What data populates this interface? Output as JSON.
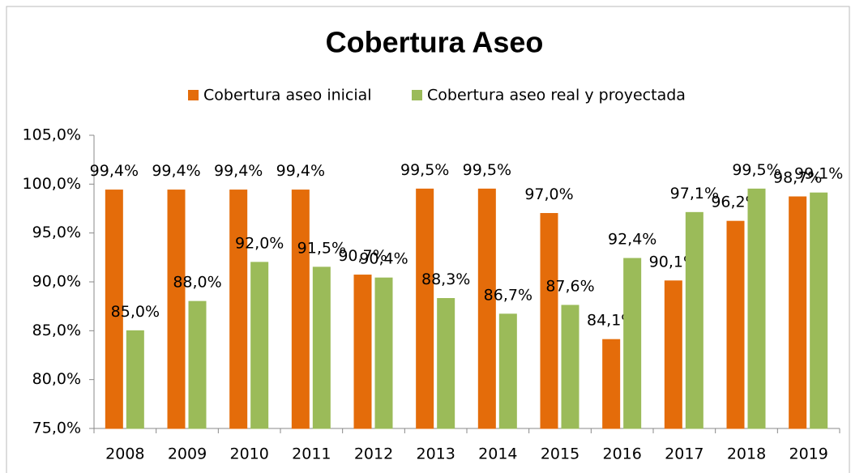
{
  "chart_data": {
    "type": "bar",
    "title": "Cobertura Aseo",
    "categories": [
      "2008",
      "2009",
      "2010",
      "2011",
      "2012",
      "2013",
      "2014",
      "2015",
      "2016",
      "2017",
      "2018",
      "2019"
    ],
    "series": [
      {
        "name": "Cobertura aseo inicial",
        "color": "#e46c0a",
        "values": [
          99.4,
          99.4,
          99.4,
          99.4,
          90.7,
          99.5,
          99.5,
          97.0,
          84.1,
          90.1,
          96.2,
          98.7
        ],
        "value_labels": [
          "99,4%",
          "99,4%",
          "99,4%",
          "99,4%",
          "90,7%",
          "99,5%",
          "99,5%",
          "97,0%",
          "84,1%",
          "90,1%",
          "96,2%",
          "98,7%"
        ]
      },
      {
        "name": "Cobertura aseo real y proyectada",
        "color": "#9bbb59",
        "values": [
          85.0,
          88.0,
          92.0,
          91.5,
          90.4,
          88.3,
          86.7,
          87.6,
          92.4,
          97.1,
          99.5,
          99.1
        ],
        "value_labels": [
          "85,0%",
          "88,0%",
          "92,0%",
          "91,5%",
          "90,4%",
          "88,3%",
          "86,7%",
          "87,6%",
          "92,4%",
          "97,1%",
          "99,5%",
          "99,1%"
        ]
      }
    ],
    "ylim": [
      75,
      105
    ],
    "yticks": [
      {
        "value": 75,
        "label": "75,0%"
      },
      {
        "value": 80,
        "label": "80,0%"
      },
      {
        "value": 85,
        "label": "85,0%"
      },
      {
        "value": 90,
        "label": "90,0%"
      },
      {
        "value": 95,
        "label": "95,0%"
      },
      {
        "value": 100,
        "label": "100,0%"
      },
      {
        "value": 105,
        "label": "105,0%"
      }
    ],
    "legend": "top"
  }
}
